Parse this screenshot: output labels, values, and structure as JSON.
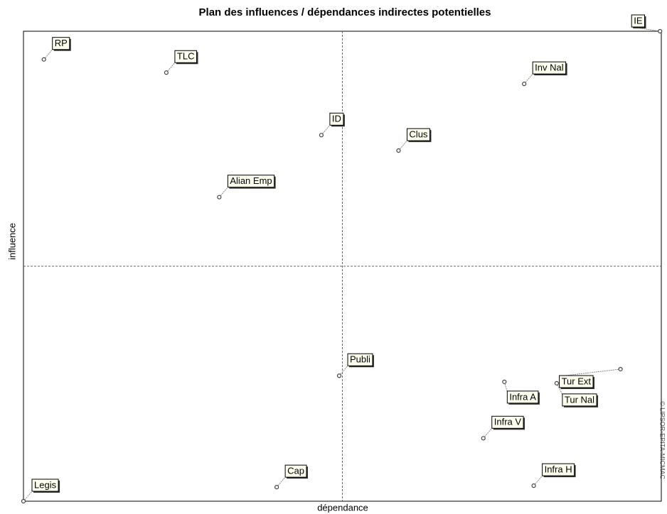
{
  "chart_data": {
    "type": "scatter",
    "title": "Plan des influences / dépendances indirectes potentielles",
    "x_label": "dépendance",
    "y_label": "influence",
    "watermark": "© LIPSOR-EPITA-MICMAC",
    "xlim": [
      0,
      100
    ],
    "ylim": [
      0,
      100
    ],
    "points": [
      {
        "label": "RP",
        "x": 3.2,
        "y": 94.0
      },
      {
        "label": "TLC",
        "x": 22.4,
        "y": 91.2
      },
      {
        "label": "ID",
        "x": 46.7,
        "y": 77.9
      },
      {
        "label": "Clus",
        "x": 58.8,
        "y": 74.6
      },
      {
        "label": "Alian Emp",
        "x": 30.7,
        "y": 64.7
      },
      {
        "label": "IE",
        "x": 99.8,
        "y": 100
      },
      {
        "label": "Inv Nal",
        "x": 78.5,
        "y": 88.8
      },
      {
        "label": "Publi",
        "x": 49.5,
        "y": 26.7
      },
      {
        "label": "Infra A",
        "x": 75.4,
        "y": 25.4
      },
      {
        "label": "Tur Ext",
        "x": 93.6,
        "y": 28.1
      },
      {
        "label": "Tur Nal",
        "x": 83.6,
        "y": 25.1
      },
      {
        "label": "Infra V",
        "x": 72.1,
        "y": 13.4
      },
      {
        "label": "Infra H",
        "x": 80.0,
        "y": 3.3
      },
      {
        "label": "Cap",
        "x": 39.7,
        "y": 3.0
      },
      {
        "label": "Legis",
        "x": 0,
        "y": 0
      }
    ]
  }
}
